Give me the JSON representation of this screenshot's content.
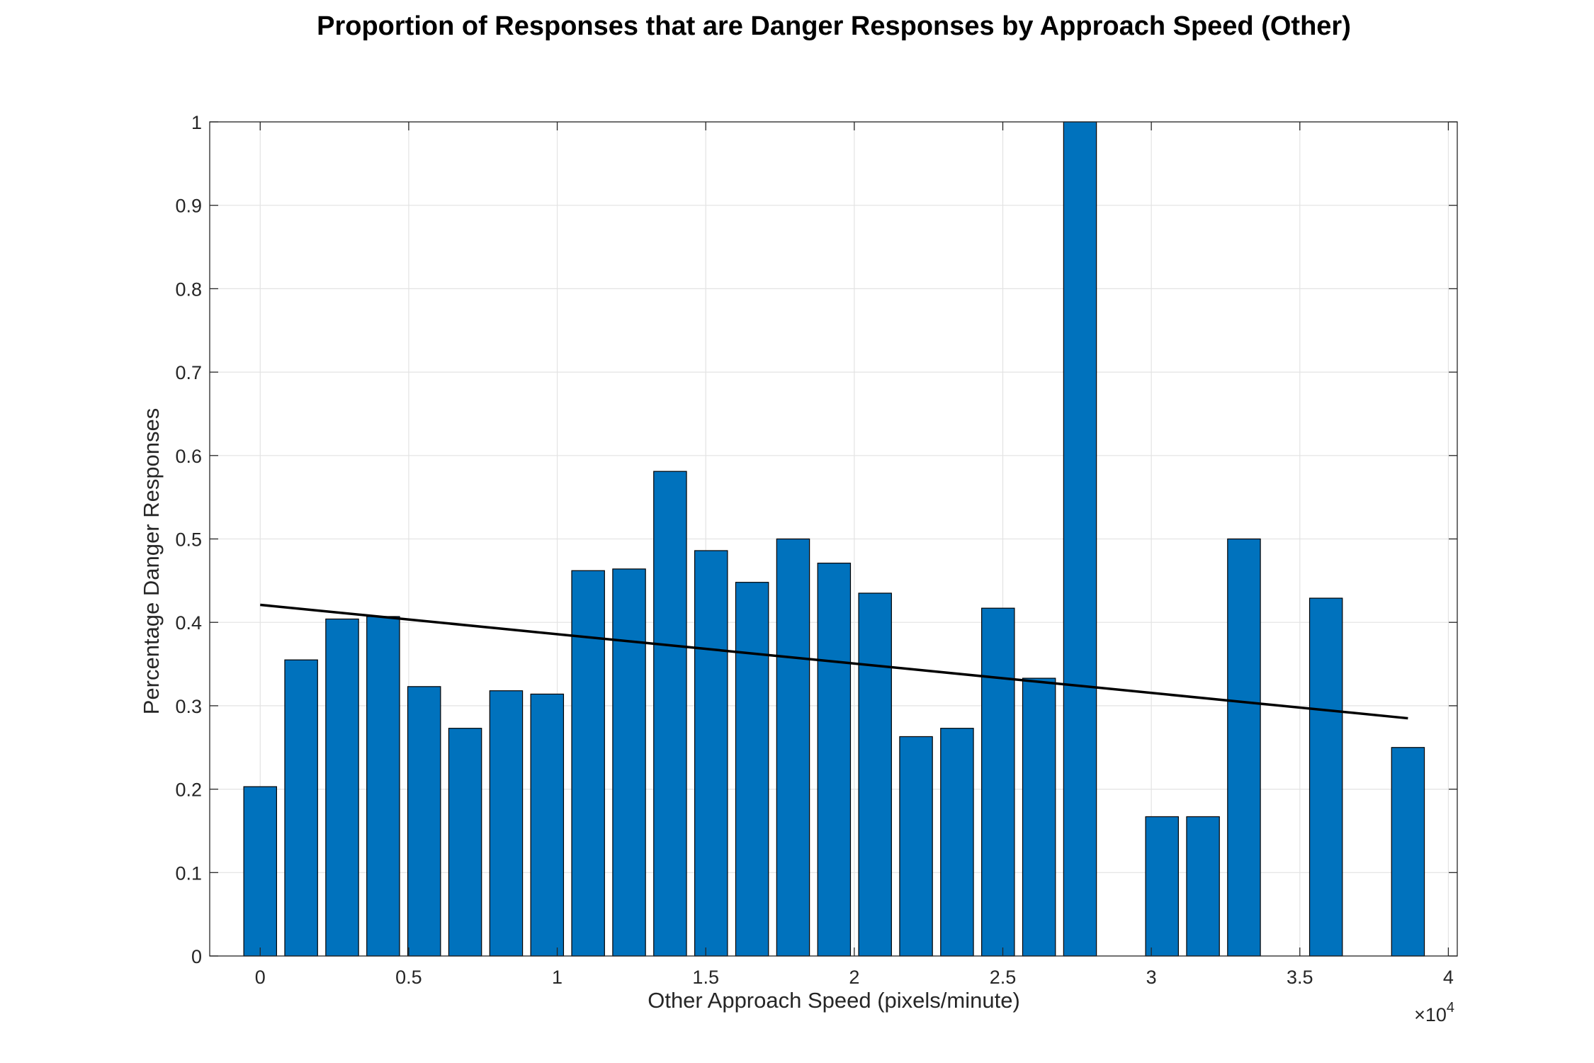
{
  "chart_data": {
    "type": "bar",
    "title": "Proportion of Responses that are Danger Responses by Approach Speed (Other)",
    "xlabel": "Other Approach Speed (pixels/minute)",
    "ylabel": "Percentage Danger Responses",
    "x_exponent": {
      "base": "×10",
      "power": "4"
    },
    "xlim": [
      -1700,
      40300
    ],
    "ylim": [
      0,
      1
    ],
    "x_ticks": [
      0,
      5000,
      10000,
      15000,
      20000,
      25000,
      30000,
      35000,
      40000
    ],
    "x_tick_labels": [
      "0",
      "0.5",
      "1",
      "1.5",
      "2",
      "2.5",
      "3",
      "3.5",
      "4"
    ],
    "y_ticks": [
      0,
      0.1,
      0.2,
      0.3,
      0.4,
      0.5,
      0.6,
      0.7,
      0.8,
      0.9,
      1
    ],
    "y_tick_labels": [
      "0",
      "0.1",
      "0.2",
      "0.3",
      "0.4",
      "0.5",
      "0.6",
      "0.7",
      "0.8",
      "0.9",
      "1"
    ],
    "grid": true,
    "bar_color": "#0072BD",
    "bar_edge_color": "#000000",
    "bin_width": 1380,
    "series": [
      {
        "type": "bar",
        "x": [
          0,
          1380,
          2760,
          4140,
          5520,
          6900,
          8280,
          9660,
          11040,
          12420,
          13800,
          15180,
          16560,
          17940,
          19320,
          20700,
          22080,
          23460,
          24840,
          26220,
          27600,
          28980,
          30360,
          31740,
          33120,
          34500,
          35880,
          37260,
          38640
        ],
        "values": [
          0.203,
          0.355,
          0.404,
          0.407,
          0.323,
          0.273,
          0.318,
          0.314,
          0.462,
          0.464,
          0.581,
          0.486,
          0.448,
          0.5,
          0.471,
          0.435,
          0.263,
          0.273,
          0.417,
          0.333,
          1.0,
          0.0,
          0.167,
          0.167,
          0.5,
          0.0,
          0.429,
          0.0,
          0.25
        ]
      },
      {
        "type": "line",
        "x": [
          0,
          38640
        ],
        "values": [
          0.421,
          0.285
        ],
        "color": "#000000"
      }
    ]
  }
}
